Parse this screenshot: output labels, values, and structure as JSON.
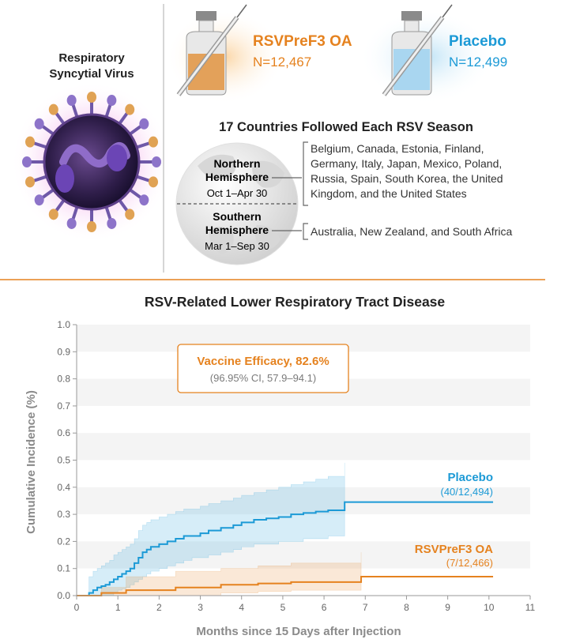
{
  "virus": {
    "line1": "Respiratory",
    "line2": "Syncytial Virus"
  },
  "arms": {
    "vaccine": {
      "name": "RSVPreF3 OA",
      "n": "N=12,467"
    },
    "placebo": {
      "name": "Placebo",
      "n": "N=12,499"
    }
  },
  "countries": {
    "title": "17 Countries Followed Each RSV Season",
    "north": {
      "label1": "Northern",
      "label2": "Hemisphere",
      "dates": "Oct 1–Apr 30",
      "list": [
        "Belgium, Canada, Estonia, Finland,",
        "Germany, Italy, Japan, Mexico, Poland,",
        "Russia, Spain, South Korea, the United",
        "Kingdom, and the United States"
      ]
    },
    "south": {
      "label1": "Southern",
      "label2": "Hemisphere",
      "dates": "Mar 1–Sep 30",
      "list": [
        "Australia, New Zealand, and South Africa"
      ]
    }
  },
  "colors": {
    "orange": "#e5821f",
    "blue": "#1c9ad6",
    "divider": "#e5821f"
  },
  "chart_data": {
    "type": "line",
    "title": "RSV-Related Lower Respiratory Tract Disease",
    "xlabel": "Months since 15 Days after Injection",
    "ylabel": "Cumulative Incidence (%)",
    "xlim": [
      0,
      11
    ],
    "ylim": [
      0,
      1.0
    ],
    "xticks": [
      0,
      1,
      2,
      3,
      4,
      5,
      6,
      7,
      8,
      9,
      10,
      11
    ],
    "yticks": [
      "0.0",
      "0.1",
      "0.2",
      "0.3",
      "0.4",
      "0.5",
      "0.6",
      "0.7",
      "0.8",
      "0.9",
      "1.0"
    ],
    "annotation": {
      "title": "Vaccine Efficacy, 82.6%",
      "subtitle": "(96.95% CI, 57.9–94.1)"
    },
    "series": [
      {
        "name": "Placebo",
        "label_sub": "(40/12,494)",
        "color": "#1c9ad6",
        "x": [
          0.0,
          0.3,
          0.4,
          0.5,
          0.6,
          0.7,
          0.8,
          0.9,
          1.0,
          1.1,
          1.2,
          1.3,
          1.4,
          1.5,
          1.6,
          1.7,
          1.8,
          2.0,
          2.2,
          2.4,
          2.6,
          2.8,
          3.0,
          3.2,
          3.5,
          3.8,
          4.0,
          4.3,
          4.6,
          4.9,
          5.2,
          5.5,
          5.8,
          6.1,
          6.5,
          10.1
        ],
        "y": [
          0.0,
          0.01,
          0.02,
          0.03,
          0.035,
          0.04,
          0.05,
          0.06,
          0.07,
          0.08,
          0.09,
          0.1,
          0.12,
          0.14,
          0.16,
          0.17,
          0.18,
          0.19,
          0.2,
          0.21,
          0.22,
          0.22,
          0.23,
          0.24,
          0.25,
          0.26,
          0.27,
          0.28,
          0.285,
          0.29,
          0.3,
          0.305,
          0.31,
          0.315,
          0.345,
          0.345
        ],
        "ci_upper": [
          0.0,
          0.07,
          0.09,
          0.1,
          0.11,
          0.12,
          0.13,
          0.15,
          0.16,
          0.17,
          0.18,
          0.19,
          0.21,
          0.24,
          0.26,
          0.27,
          0.28,
          0.29,
          0.3,
          0.31,
          0.32,
          0.32,
          0.33,
          0.34,
          0.35,
          0.36,
          0.37,
          0.38,
          0.39,
          0.4,
          0.41,
          0.42,
          0.43,
          0.44,
          0.49,
          0.49
        ],
        "ci_lower": [
          0.0,
          0.0,
          0.0,
          0.0,
          0.0,
          0.0,
          0.0,
          0.01,
          0.02,
          0.025,
          0.03,
          0.04,
          0.05,
          0.06,
          0.07,
          0.08,
          0.09,
          0.1,
          0.11,
          0.12,
          0.13,
          0.14,
          0.14,
          0.15,
          0.16,
          0.17,
          0.18,
          0.19,
          0.19,
          0.2,
          0.2,
          0.21,
          0.21,
          0.22,
          0.22,
          0.22
        ]
      },
      {
        "name": "RSVPreF3 OA",
        "label_sub": "(7/12,466)",
        "color": "#e5821f",
        "x": [
          0.0,
          0.6,
          1.2,
          2.4,
          3.5,
          4.4,
          5.2,
          6.9,
          10.1
        ],
        "y": [
          0.0,
          0.01,
          0.02,
          0.03,
          0.04,
          0.045,
          0.05,
          0.07,
          0.07
        ],
        "ci_upper": [
          0.0,
          0.03,
          0.07,
          0.09,
          0.1,
          0.11,
          0.12,
          0.16,
          0.16
        ],
        "ci_lower": [
          0.0,
          0.0,
          0.0,
          0.0,
          0.01,
          0.015,
          0.02,
          0.025,
          0.025
        ]
      }
    ]
  }
}
